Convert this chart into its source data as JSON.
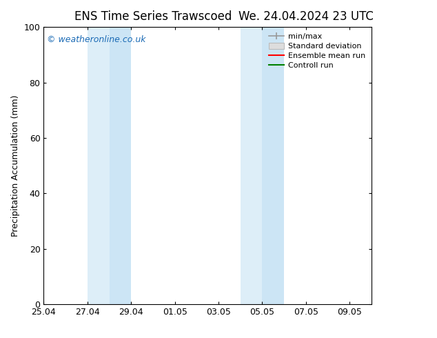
{
  "title": "ENS Time Series Trawscoed",
  "title2": "We. 24.04.2024 23 UTC",
  "ylabel": "Precipitation Accumulation (mm)",
  "ylim": [
    0,
    100
  ],
  "yticks": [
    0,
    20,
    40,
    60,
    80,
    100
  ],
  "xlim": [
    0,
    15
  ],
  "xtick_labels": [
    "25.04",
    "27.04",
    "29.04",
    "01.05",
    "03.05",
    "05.05",
    "07.05",
    "09.05"
  ],
  "xtick_positions": [
    0,
    2,
    4,
    6,
    8,
    10,
    12,
    14
  ],
  "shading_bands": [
    {
      "xstart_days": 2.0,
      "xend_days": 3.0,
      "color": "#ddeef8"
    },
    {
      "xstart_days": 3.0,
      "xend_days": 4.0,
      "color": "#cce5f5"
    },
    {
      "xstart_days": 9.0,
      "xend_days": 10.0,
      "color": "#ddeef8"
    },
    {
      "xstart_days": 10.0,
      "xend_days": 11.0,
      "color": "#cce5f5"
    }
  ],
  "watermark": "© weatheronline.co.uk",
  "watermark_color": "#1a6ab5",
  "legend_items": [
    {
      "label": "min/max",
      "color": "#999999",
      "style": "errorbar"
    },
    {
      "label": "Standard deviation",
      "color": "#cccccc",
      "style": "patch"
    },
    {
      "label": "Ensemble mean run",
      "color": "red",
      "style": "line"
    },
    {
      "label": "Controll run",
      "color": "green",
      "style": "line"
    }
  ],
  "bg_color": "#ffffff",
  "plot_bg_color": "#ffffff",
  "title_fontsize": 12,
  "axis_label_fontsize": 9,
  "tick_fontsize": 9,
  "legend_fontsize": 8
}
